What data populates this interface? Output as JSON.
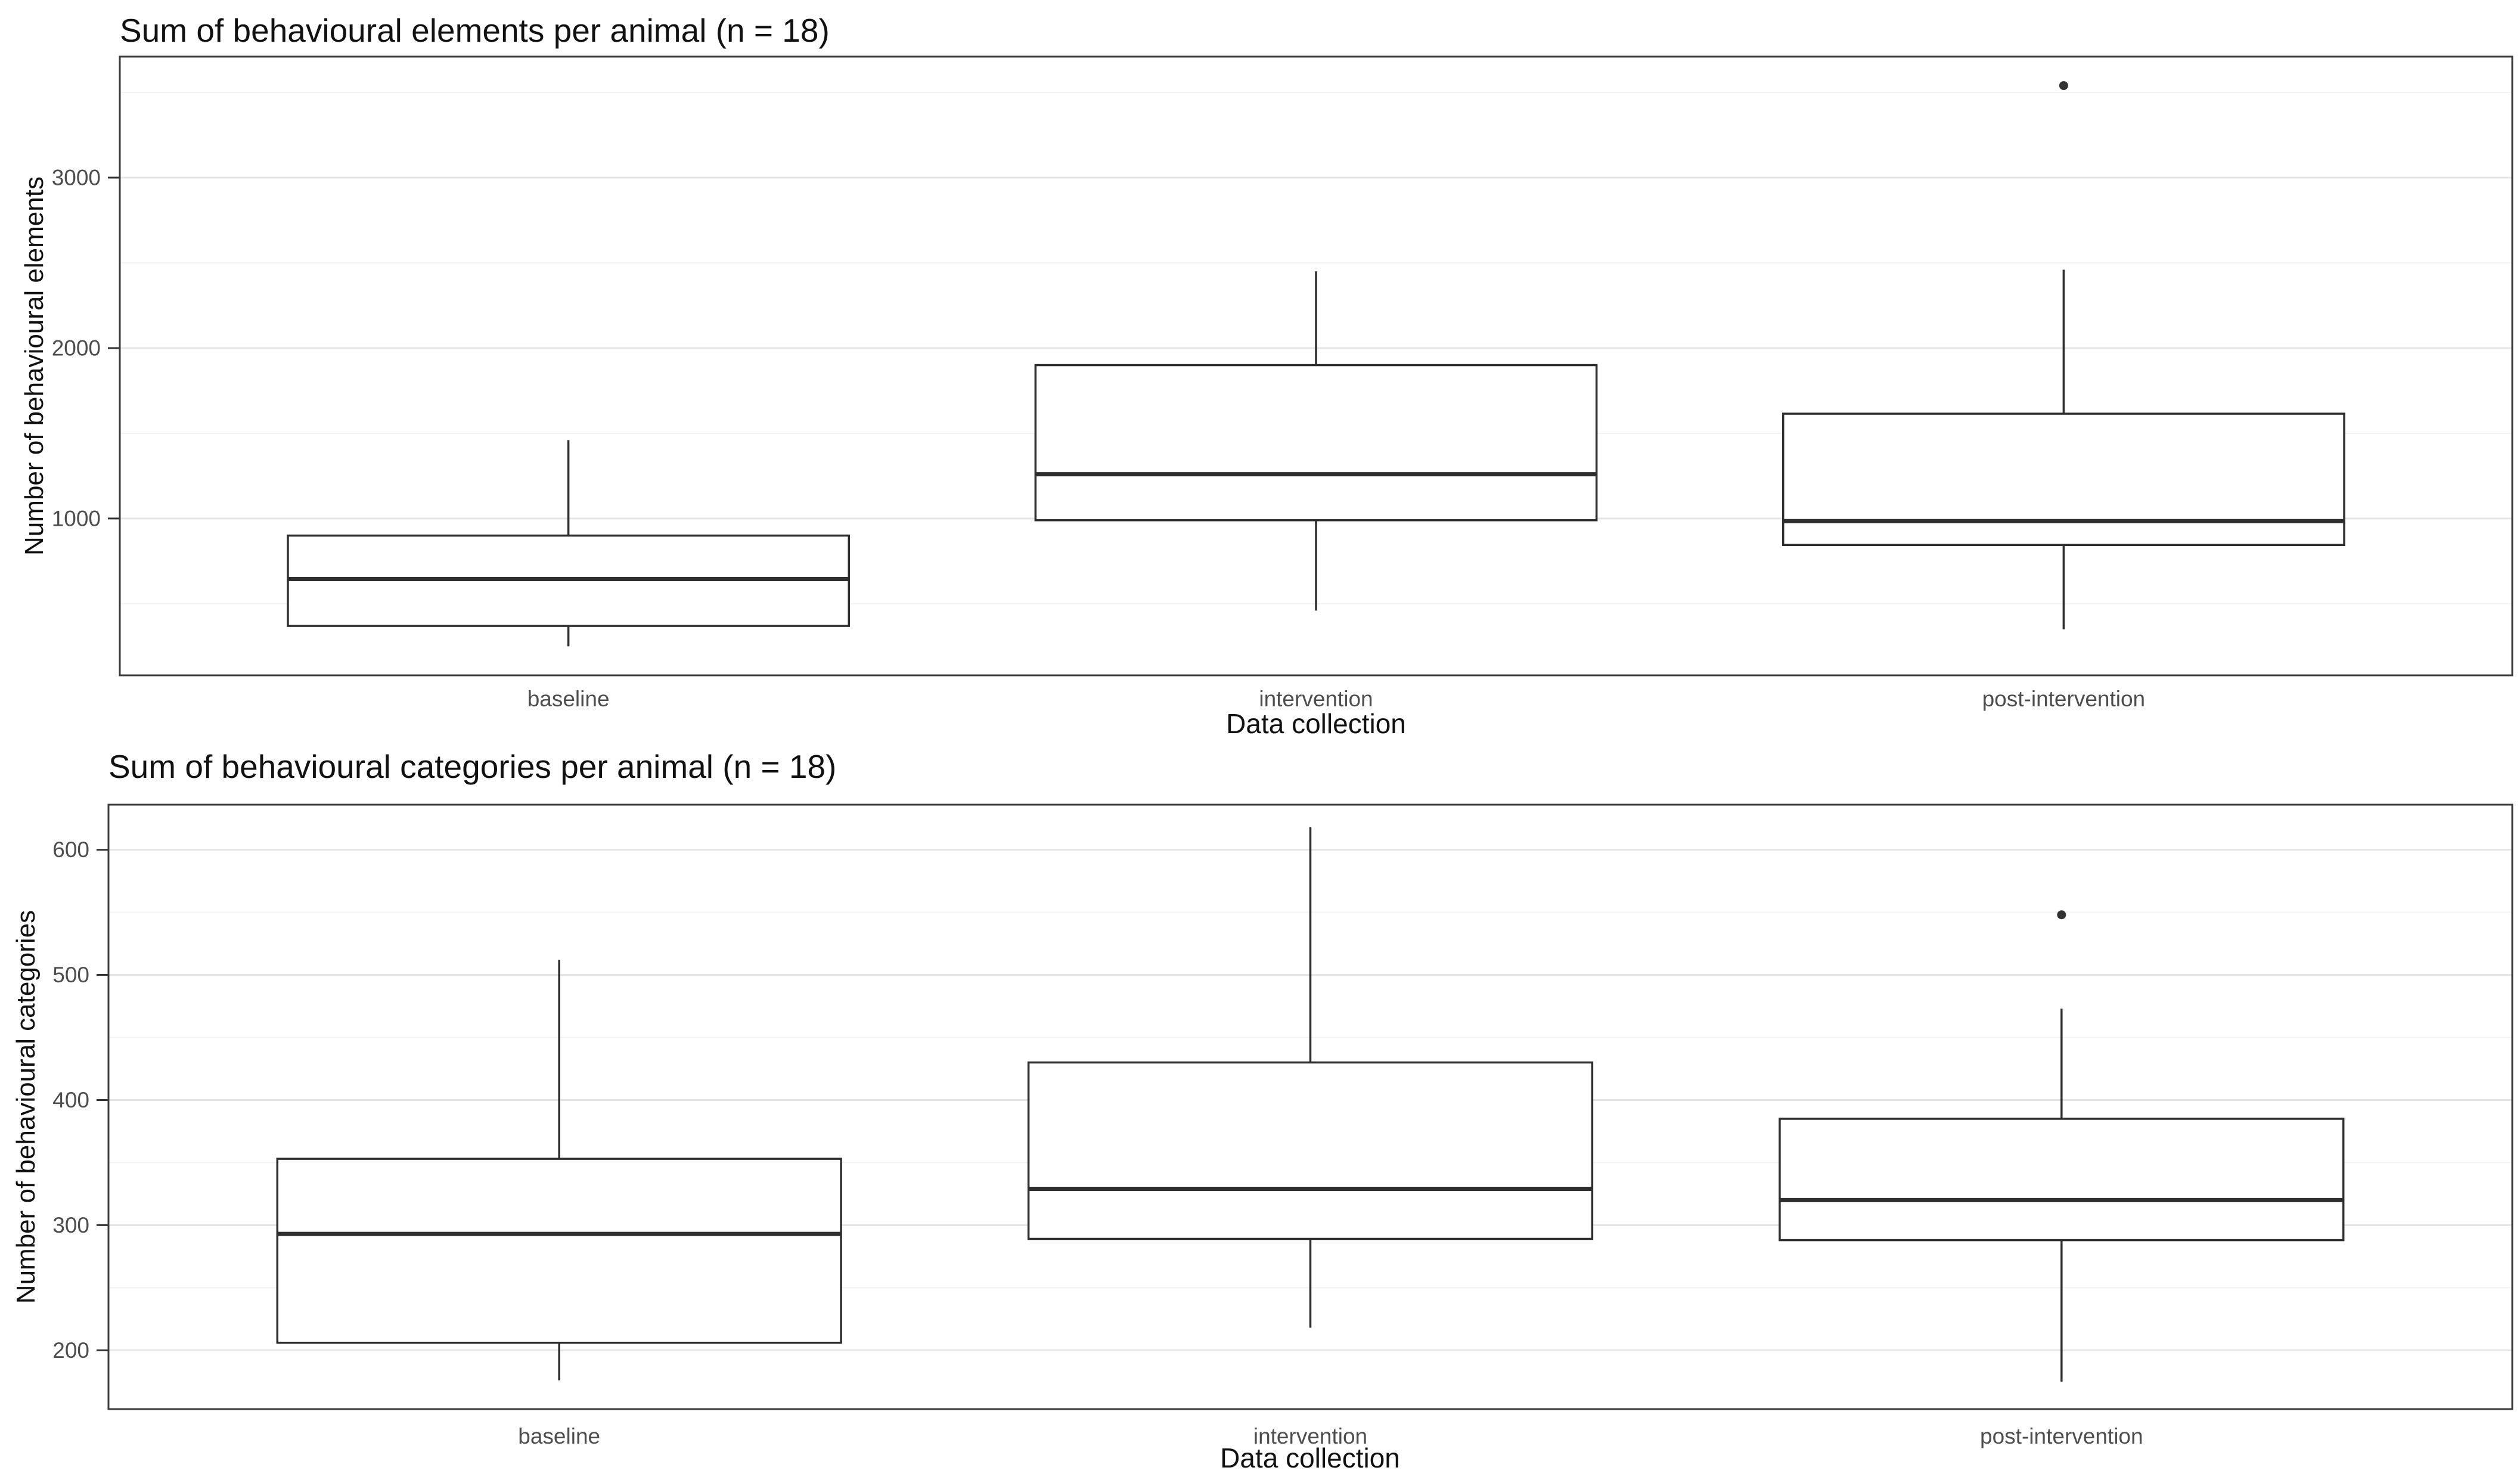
{
  "page": {
    "background": "#ffffff"
  },
  "colors": {
    "panel_border": "#3c3c3c",
    "panel_fill": "#ffffff",
    "grid_major": "#e4e4e4",
    "grid_minor": "#f2f2f2",
    "box_stroke": "#2e2e2e",
    "box_fill": "#ffffff",
    "tick_mark": "#333333",
    "tick_label": "#4d4d4d",
    "title_text": "#111111",
    "axis_title_text": "#111111",
    "outlier": "#333333"
  },
  "chart_data": [
    {
      "type": "boxplot",
      "title": "Sum of behavioural elements per animal (n = 18)",
      "ylabel": "Number of behavioural elements",
      "xlabel": "Data collection",
      "categories": [
        "baseline",
        "intervention",
        "post-intervention"
      ],
      "ylim": [
        80,
        3710
      ],
      "yticks": [
        1000,
        2000,
        3000
      ],
      "minor_step": 500,
      "grid": true,
      "legend": "none",
      "series": [
        {
          "category": "baseline",
          "whisker_low": 250,
          "q1": 370,
          "median": 645,
          "q3": 900,
          "whisker_high": 1460,
          "outliers": []
        },
        {
          "category": "intervention",
          "whisker_low": 460,
          "q1": 990,
          "median": 1260,
          "q3": 1900,
          "whisker_high": 2450,
          "outliers": []
        },
        {
          "category": "post-intervention",
          "whisker_low": 350,
          "q1": 845,
          "median": 985,
          "q3": 1615,
          "whisker_high": 2460,
          "outliers": [
            3540
          ]
        }
      ]
    },
    {
      "type": "boxplot",
      "title": "Sum of behavioural categories per animal (n = 18)",
      "ylabel": "Number of behavioural categories",
      "xlabel": "Data collection",
      "categories": [
        "baseline",
        "intervention",
        "post-intervention"
      ],
      "ylim": [
        153,
        636
      ],
      "yticks": [
        200,
        300,
        400,
        500,
        600
      ],
      "minor_step": 50,
      "grid": true,
      "legend": "none",
      "series": [
        {
          "category": "baseline",
          "whisker_low": 176,
          "q1": 206,
          "median": 293,
          "q3": 353,
          "whisker_high": 512,
          "outliers": []
        },
        {
          "category": "intervention",
          "whisker_low": 218,
          "q1": 289,
          "median": 329,
          "q3": 430,
          "whisker_high": 618,
          "outliers": []
        },
        {
          "category": "post-intervention",
          "whisker_low": 175,
          "q1": 288,
          "median": 320,
          "q3": 385,
          "whisker_high": 473,
          "outliers": [
            548
          ]
        }
      ]
    }
  ]
}
